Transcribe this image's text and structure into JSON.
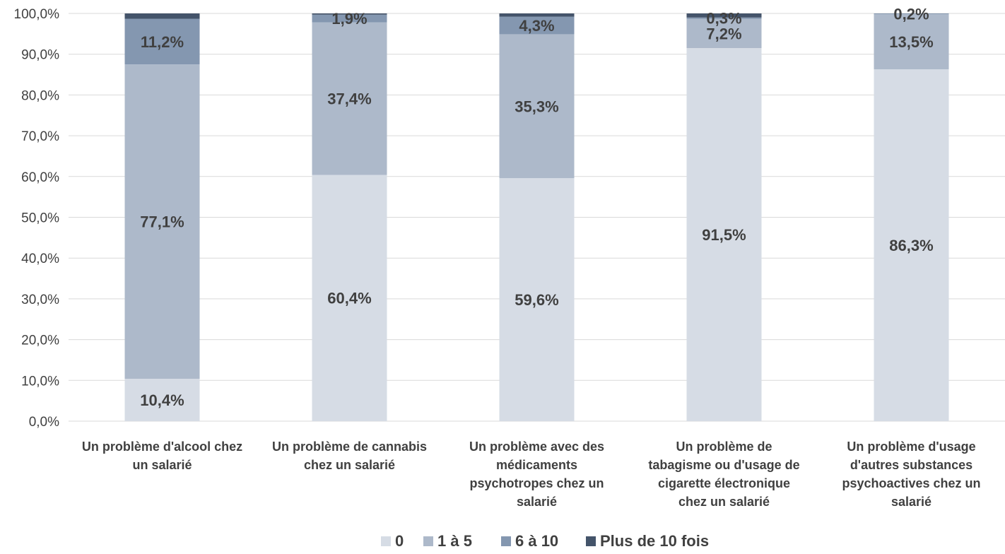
{
  "chart_data": {
    "type": "bar",
    "stacked": true,
    "percent_stacked": true,
    "categories": [
      [
        "Un problème d'alcool chez",
        "un salarié"
      ],
      [
        "Un problème de cannabis",
        "chez un salarié"
      ],
      [
        "Un problème avec des",
        "médicaments",
        "psychotropes chez un",
        "salarié"
      ],
      [
        "Un problème de",
        "tabagisme ou d'usage de",
        "cigarette électronique",
        "chez un salarié"
      ],
      [
        "Un problème d'usage",
        "d'autres substances",
        "psychoactives chez un",
        "salarié"
      ]
    ],
    "series": [
      {
        "name": "0",
        "color": "#d6dce5",
        "values": [
          10.4,
          60.4,
          59.6,
          91.5,
          86.3
        ],
        "labels": [
          "10,4%",
          "60,4%",
          "59,6%",
          "91,5%",
          "86,3%"
        ]
      },
      {
        "name": "1 à 5",
        "color": "#adb9ca",
        "values": [
          77.1,
          37.4,
          35.3,
          7.2,
          13.5
        ],
        "labels": [
          "77,1%",
          "37,4%",
          "35,3%",
          "7,2%",
          "13,5%"
        ]
      },
      {
        "name": "6 à 10",
        "color": "#8497b0",
        "values": [
          11.2,
          1.9,
          4.3,
          0.3,
          0.2
        ],
        "labels": [
          "11,2%",
          "1,9%",
          "4,3%",
          "0,3%",
          "0,2%"
        ]
      },
      {
        "name": "Plus de 10 fois",
        "color": "#44546a",
        "values": [
          1.3,
          0.3,
          0.8,
          1.0,
          0.0
        ],
        "labels": [
          "",
          "",
          "",
          "",
          ""
        ]
      }
    ],
    "yticks": [
      "0,0%",
      "10,0%",
      "20,0%",
      "30,0%",
      "40,0%",
      "50,0%",
      "60,0%",
      "70,0%",
      "80,0%",
      "90,0%",
      "100,0%"
    ],
    "ylim": [
      0,
      100
    ],
    "grid": true,
    "legend_position": "bottom",
    "gridline_color": "#d9d9d9"
  }
}
